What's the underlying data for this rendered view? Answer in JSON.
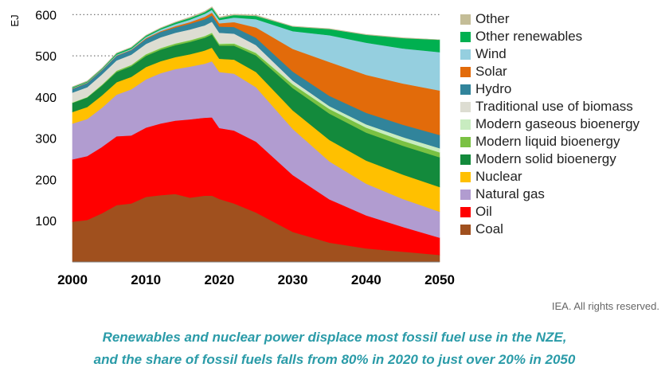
{
  "chart_data": {
    "type": "area",
    "title": "",
    "xlabel": "",
    "ylabel": "EJ",
    "xlim": [
      2000,
      2050
    ],
    "ylim": [
      0,
      620
    ],
    "x_ticks": [
      2000,
      2010,
      2020,
      2030,
      2040,
      2050
    ],
    "y_ticks": [
      100,
      200,
      300,
      400,
      500,
      600
    ],
    "gridlines": [
      500,
      600
    ],
    "x": [
      2000,
      2002,
      2004,
      2006,
      2008,
      2010,
      2012,
      2014,
      2016,
      2018,
      2019,
      2020,
      2022,
      2025,
      2030,
      2035,
      2040,
      2045,
      2050
    ],
    "series": [
      {
        "name": "Coal",
        "color": "#a0501e",
        "values": [
          98,
          102,
          118,
          138,
          142,
          158,
          162,
          165,
          156,
          161,
          161,
          153,
          142,
          120,
          73,
          47,
          33,
          25,
          17
        ]
      },
      {
        "name": "Oil",
        "color": "#ff0000",
        "values": [
          151,
          155,
          161,
          167,
          165,
          168,
          174,
          178,
          190,
          189,
          190,
          172,
          177,
          172,
          138,
          105,
          80,
          60,
          42
        ]
      },
      {
        "name": "Natural gas",
        "color": "#b19cd0",
        "values": [
          87,
          90,
          95,
          101,
          112,
          117,
          122,
          125,
          128,
          131,
          136,
          136,
          138,
          132,
          112,
          92,
          77,
          68,
          63
        ]
      },
      {
        "name": "Nuclear",
        "color": "#ffc000",
        "values": [
          28,
          29,
          30,
          30,
          30,
          30,
          29,
          29,
          30,
          32,
          33,
          32,
          34,
          37,
          45,
          52,
          56,
          59,
          60
        ]
      },
      {
        "name": "Modern solid bioenergy",
        "color": "#138a3c",
        "values": [
          22,
          23,
          24,
          25,
          26,
          27,
          28,
          29,
          30,
          31,
          32,
          32,
          34,
          40,
          54,
          64,
          68,
          70,
          72
        ]
      },
      {
        "name": "Modern liquid bioenergy",
        "color": "#7ac143",
        "values": [
          1,
          1,
          2,
          3,
          3,
          4,
          4,
          4,
          4,
          4,
          4,
          4,
          5,
          6,
          9,
          11,
          12,
          12,
          12
        ]
      },
      {
        "name": "Modern gaseous bioenergy",
        "color": "#c8ecc0",
        "values": [
          1,
          1,
          1,
          1,
          1,
          1,
          1,
          1,
          1,
          1,
          2,
          2,
          2,
          3,
          5,
          7,
          8,
          9,
          10
        ]
      },
      {
        "name": "Traditional use of biomass",
        "color": "#ddddd2",
        "values": [
          23,
          23,
          24,
          24,
          24,
          24,
          25,
          25,
          25,
          25,
          25,
          25,
          22,
          16,
          4,
          0,
          0,
          0,
          0
        ]
      },
      {
        "name": "Hydro",
        "color": "#31849b",
        "values": [
          9,
          10,
          10,
          11,
          11,
          12,
          13,
          13,
          14,
          15,
          15,
          15,
          16,
          18,
          22,
          25,
          28,
          30,
          32
        ]
      },
      {
        "name": "Solar",
        "color": "#e26b0a",
        "values": [
          1,
          1,
          1,
          1,
          1,
          2,
          2,
          3,
          4,
          6,
          7,
          8,
          12,
          25,
          55,
          82,
          92,
          100,
          108
        ]
      },
      {
        "name": "Wind",
        "color": "#95cfdf",
        "values": [
          1,
          1,
          1,
          2,
          2,
          3,
          4,
          5,
          6,
          7,
          7,
          8,
          11,
          20,
          43,
          65,
          78,
          85,
          93
        ]
      },
      {
        "name": "Other renewables",
        "color": "#00b050",
        "values": [
          2,
          2,
          2,
          3,
          3,
          3,
          3,
          4,
          4,
          4,
          5,
          5,
          6,
          8,
          11,
          15,
          19,
          25,
          30
        ]
      },
      {
        "name": "Other",
        "color": "#c4bd97",
        "values": [
          1,
          1,
          1,
          1,
          1,
          1,
          1,
          1,
          2,
          2,
          2,
          2,
          2,
          2,
          1,
          1,
          1,
          1,
          0
        ]
      }
    ]
  },
  "credit": "IEA. All rights reserved.",
  "caption": {
    "line1": "Renewables and nuclear power displace most fossil fuel use in the NZE,",
    "line2": "and the share of fossil fuels falls from 80% in 2020 to just over 20% in 2050"
  }
}
